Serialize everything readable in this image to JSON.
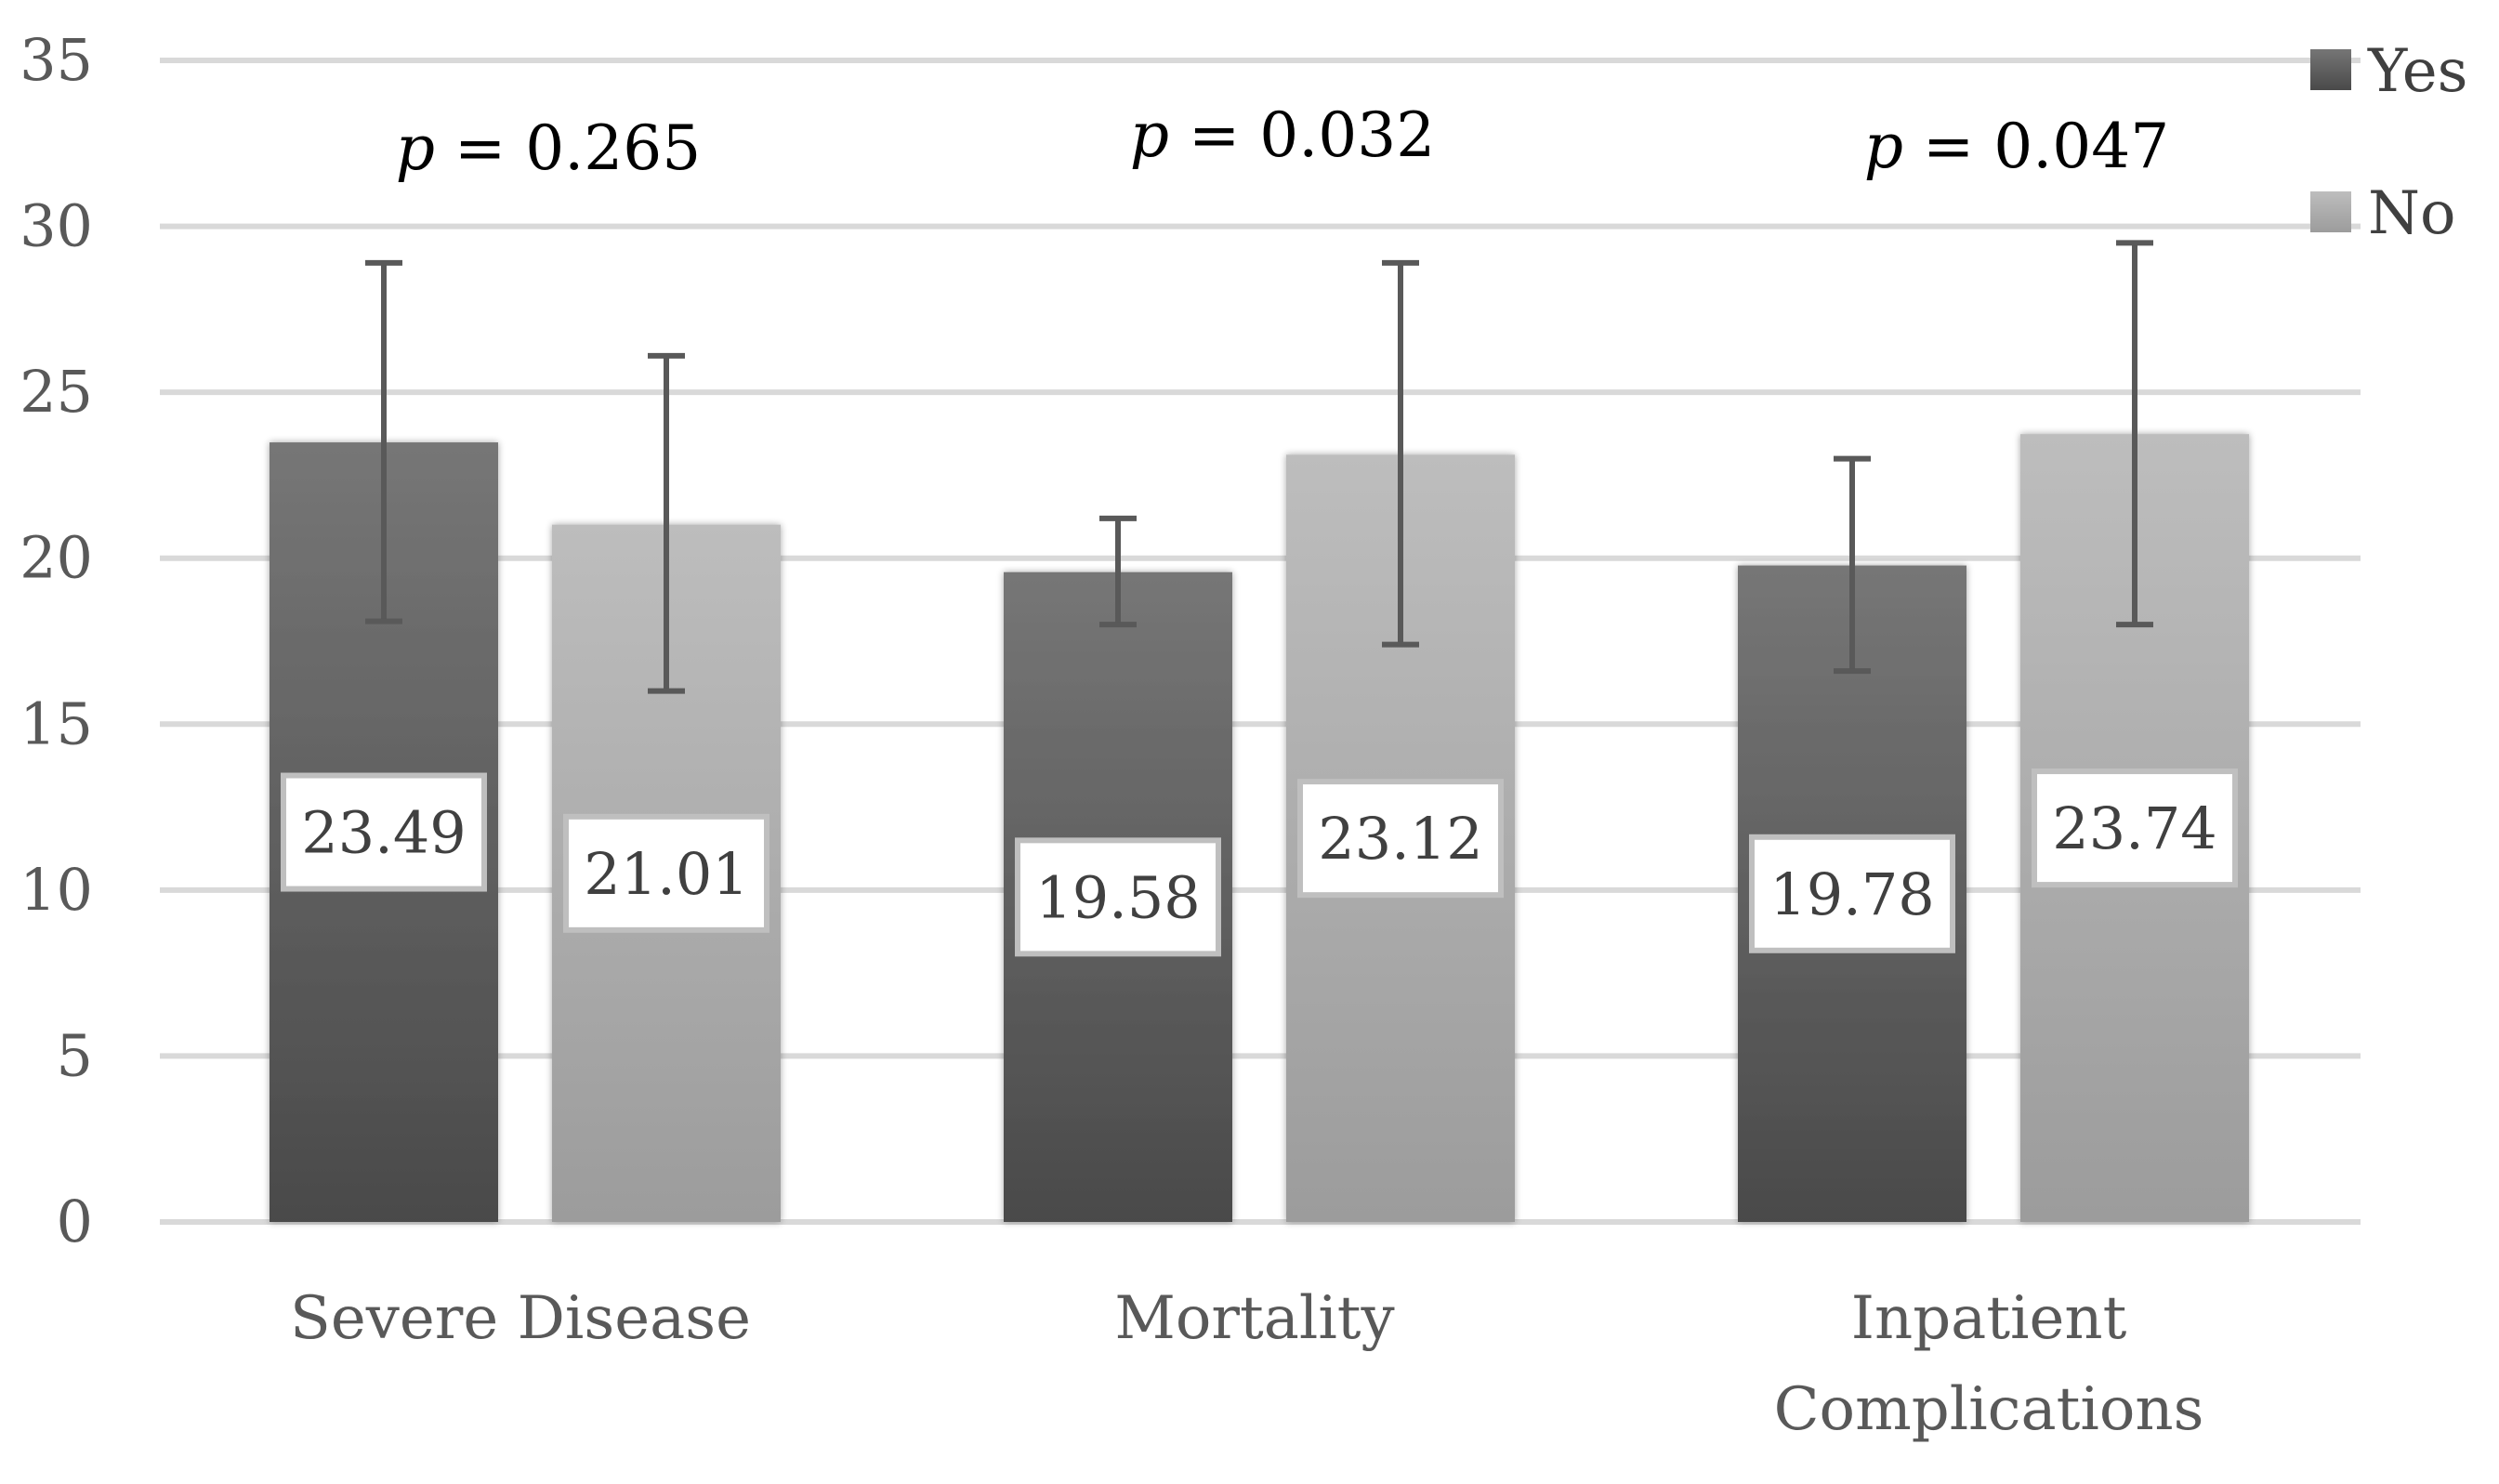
{
  "chart_data": {
    "type": "bar",
    "title": "",
    "xlabel": "",
    "ylabel": "",
    "ylim": [
      0,
      35
    ],
    "yticks": [
      0,
      5,
      10,
      15,
      20,
      25,
      30,
      35
    ],
    "grid": true,
    "legend_position": "top-right",
    "categories": [
      "Severe Disease",
      "Mortality",
      "Inpatient Complications"
    ],
    "category_lines": [
      [
        "Severe Disease"
      ],
      [
        "Mortality"
      ],
      [
        "Inpatient",
        "Complications"
      ]
    ],
    "series": [
      {
        "name": "Yes",
        "color": "#595959",
        "values": [
          23.49,
          19.58,
          19.78
        ],
        "labels": [
          "23.49",
          "19.58",
          "19.78"
        ],
        "err_low": [
          18.1,
          18.0,
          16.6
        ],
        "err_high": [
          28.9,
          21.2,
          23.0
        ]
      },
      {
        "name": "No",
        "color": "#a6a6a6",
        "values": [
          21.01,
          23.12,
          23.74
        ],
        "labels": [
          "21.01",
          "23.12",
          "23.74"
        ],
        "err_low": [
          16.0,
          17.4,
          18.0
        ],
        "err_high": [
          26.1,
          28.9,
          29.5
        ]
      }
    ],
    "annotations": [
      {
        "italic": "p",
        "text": " = 0.265"
      },
      {
        "italic": "p",
        "text": " = 0.032"
      },
      {
        "italic": "p",
        "text": " = 0.047"
      }
    ]
  }
}
